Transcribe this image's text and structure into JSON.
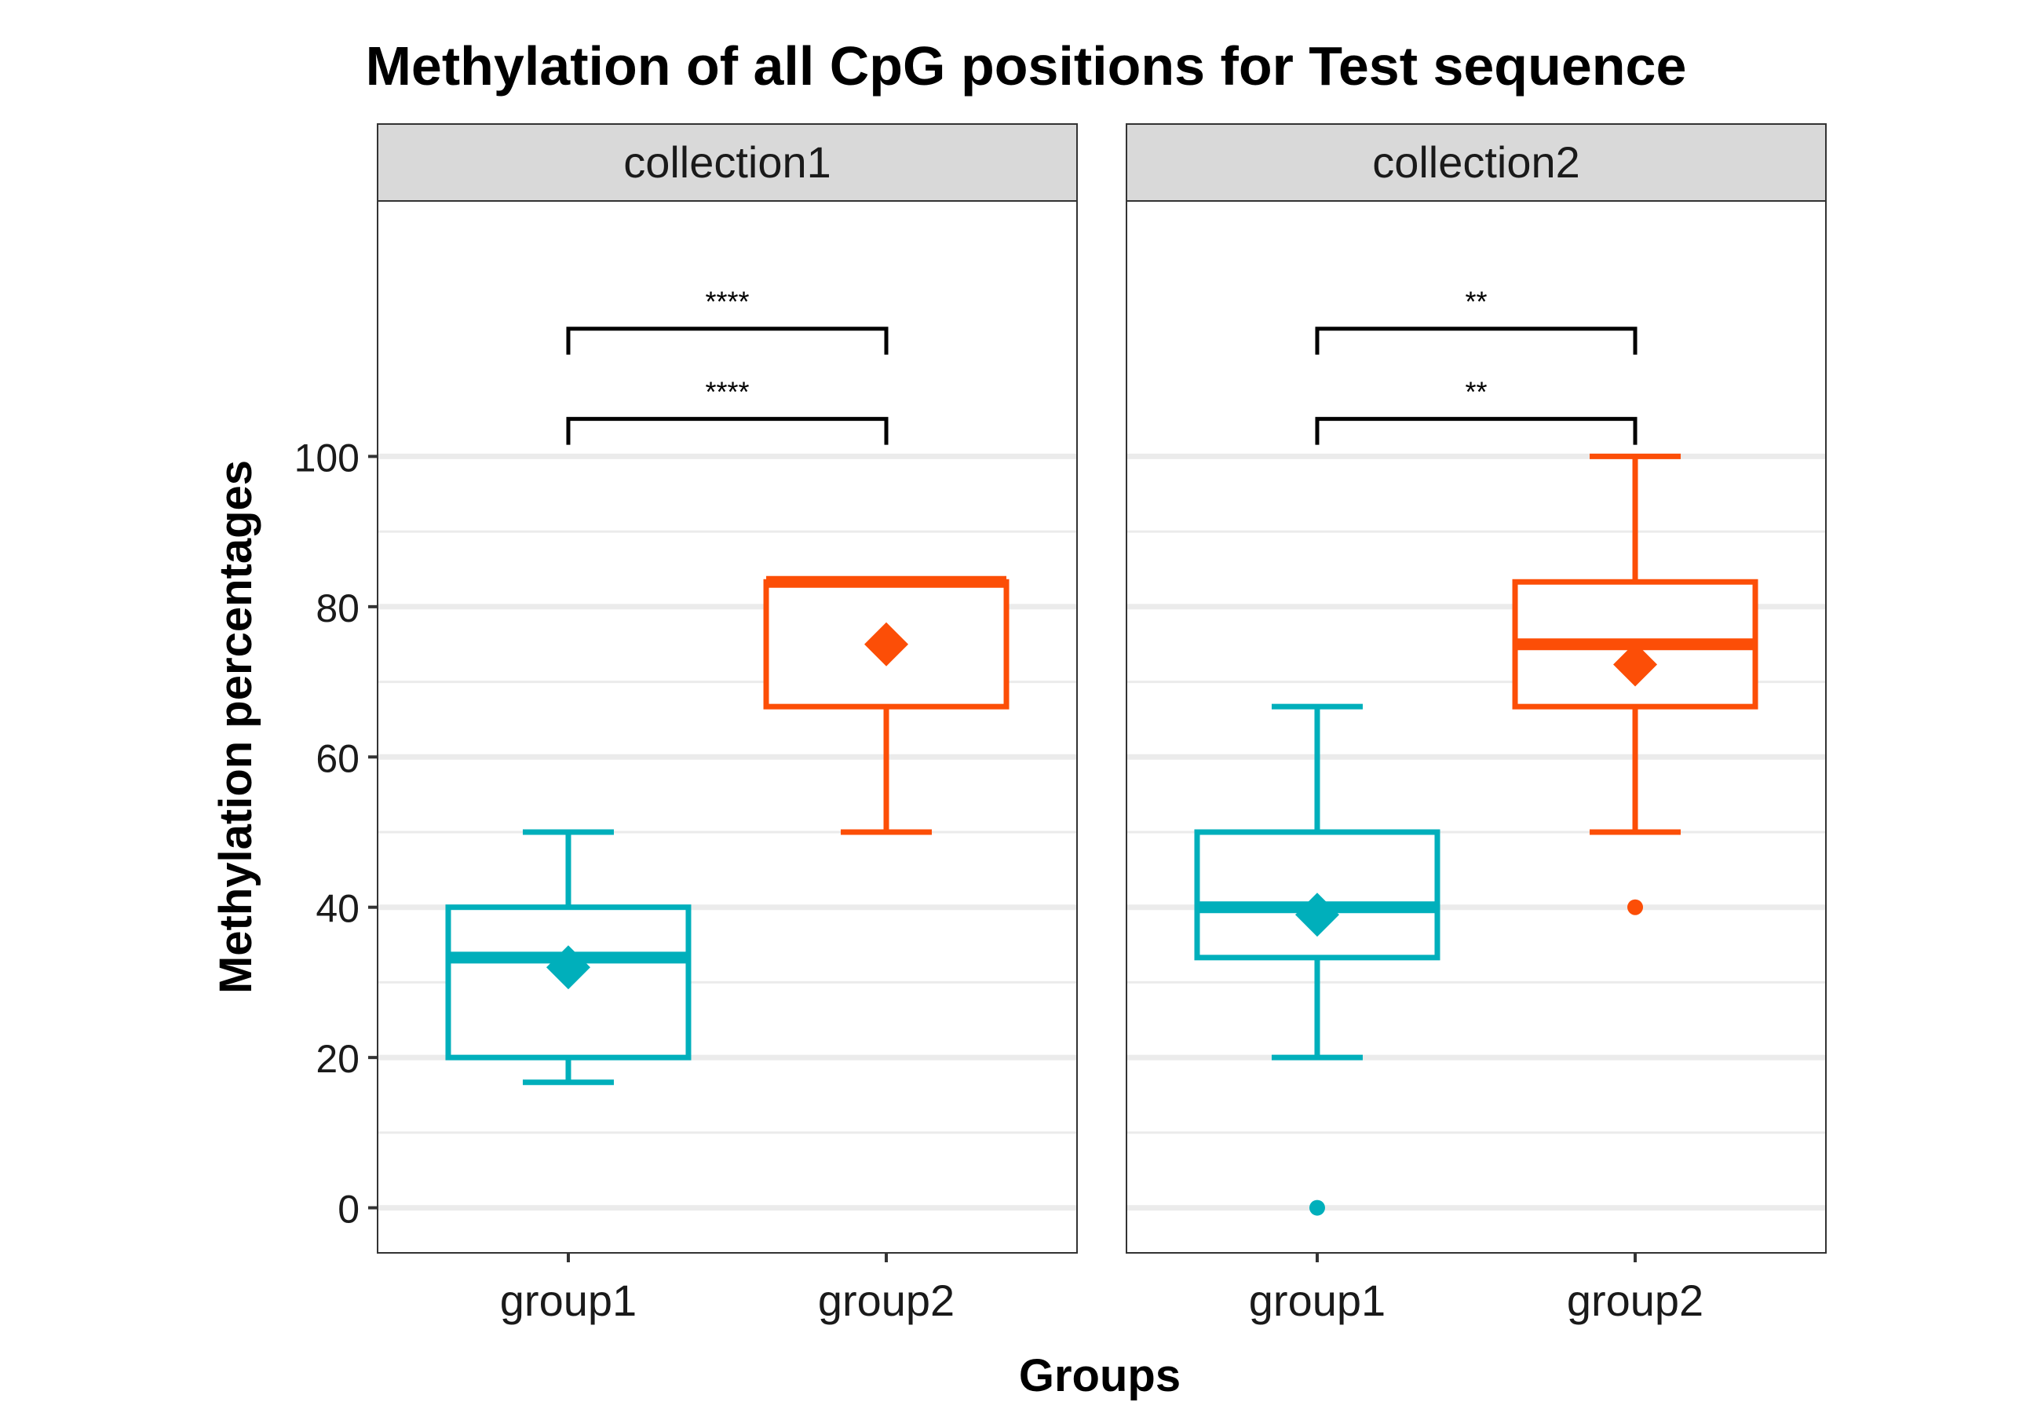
{
  "chart_data": {
    "type": "box",
    "title": "Methylation of all CpG positions for Test sequence",
    "xlabel": "Groups",
    "ylabel": "Methylation percentages",
    "ylim": [
      -6,
      134
    ],
    "yticks": [
      "0",
      "20",
      "40",
      "60",
      "80",
      "100"
    ],
    "ytick_values": [
      0,
      20,
      40,
      60,
      80,
      100
    ],
    "minor_gridlines": [
      10,
      30,
      50,
      70,
      90
    ],
    "categories": [
      "group1",
      "group2"
    ],
    "colors": {
      "group1": "#00AFBB",
      "group2": "#FC4E07"
    },
    "panels": [
      {
        "label": "collection1",
        "boxes": [
          {
            "group": "group1",
            "lower_whisker": 16.7,
            "q1": 20,
            "median": 33.3,
            "q3": 40,
            "upper_whisker": 50,
            "mean": 32,
            "outliers": []
          },
          {
            "group": "group2",
            "lower_whisker": 50,
            "q1": 66.7,
            "median": 83.3,
            "q3": 83.3,
            "upper_whisker": 83.3,
            "mean": 75,
            "outliers": []
          }
        ],
        "brackets": [
          {
            "from": "group1",
            "to": "group2",
            "y": 105,
            "label": "****"
          },
          {
            "from": "group1",
            "to": "group2",
            "y": 117,
            "label": "****"
          }
        ]
      },
      {
        "label": "collection2",
        "boxes": [
          {
            "group": "group1",
            "lower_whisker": 20,
            "q1": 33.3,
            "median": 40,
            "q3": 50,
            "upper_whisker": 66.7,
            "mean": 39,
            "outliers": [
              0
            ]
          },
          {
            "group": "group2",
            "lower_whisker": 50,
            "q1": 66.7,
            "median": 75,
            "q3": 83.3,
            "upper_whisker": 100,
            "mean": 72.3,
            "outliers": [
              40
            ]
          }
        ],
        "brackets": [
          {
            "from": "group1",
            "to": "group2",
            "y": 105,
            "label": "**"
          },
          {
            "from": "group1",
            "to": "group2",
            "y": 117,
            "label": "**"
          }
        ]
      }
    ],
    "grid": true,
    "legend": "none"
  }
}
